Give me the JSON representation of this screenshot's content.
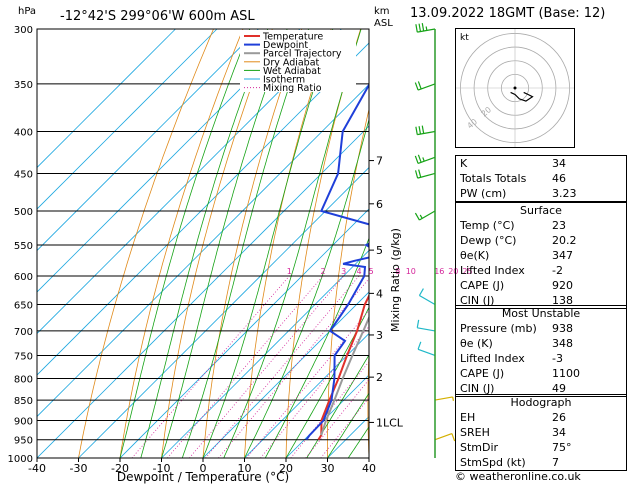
{
  "header": {
    "location": "-12°42'S  299°06'W  600m  ASL",
    "hpa_label": "hPa",
    "km_label": "km",
    "asl_label": "ASL",
    "datetime": "13.09.2022  18GMT  (Base: 12)"
  },
  "chart_data": {
    "type": "skew-t",
    "xlabel": "Dewpoint / Temperature (°C)",
    "right_axis_label": "Mixing Ratio (g/kg)",
    "x_ticks": [
      -40,
      -30,
      -20,
      -10,
      0,
      10,
      20,
      30,
      40
    ],
    "xlim": [
      -40,
      40
    ],
    "pressure_levels": [
      300,
      350,
      400,
      450,
      500,
      550,
      600,
      650,
      700,
      750,
      800,
      850,
      900,
      950,
      1000
    ],
    "ylim_hpa": [
      1000,
      300
    ],
    "height_km_ticks": [
      {
        "label": "7",
        "p": 434
      },
      {
        "label": "6",
        "p": 490
      },
      {
        "label": "5",
        "p": 558
      },
      {
        "label": "4",
        "p": 630
      },
      {
        "label": "3",
        "p": 708
      },
      {
        "label": "2",
        "p": 797
      },
      {
        "label": "1LCL",
        "p": 905
      }
    ],
    "mixing_ratio_labels": [
      "1",
      "2",
      "3",
      "4",
      "5",
      "8",
      "10",
      "16",
      "20",
      "25"
    ],
    "legend": [
      "Temperature",
      "Dewpoint",
      "Parcel Trajectory",
      "Dry Adiabat",
      "Wet Adiabat",
      "Isotherm",
      "Mixing Ratio"
    ],
    "colors": {
      "temperature": "#e0302a",
      "dewpoint": "#1f3fd9",
      "parcel": "#9a9a9a",
      "dry_adiabat": "#e08a1a",
      "wet_adiabat": "#16a316",
      "isotherm": "#1fa8e0",
      "mixing_ratio": "#d4259a"
    },
    "series": [
      {
        "name": "Temperature",
        "points": [
          [
            950,
            23.4
          ],
          [
            938,
            23
          ],
          [
            900,
            19.5
          ],
          [
            850,
            16.5
          ],
          [
            800,
            13.5
          ],
          [
            750,
            10
          ],
          [
            700,
            6.5
          ],
          [
            650,
            2
          ],
          [
            600,
            -1.5
          ],
          [
            550,
            -5
          ],
          [
            500,
            -10
          ],
          [
            450,
            -15.5
          ],
          [
            400,
            -22.5
          ],
          [
            350,
            -30
          ],
          [
            300,
            -38
          ]
        ]
      },
      {
        "name": "Dewpoint",
        "points": [
          [
            950,
            20.5
          ],
          [
            938,
            20.2
          ],
          [
            900,
            20
          ],
          [
            850,
            17
          ],
          [
            800,
            12.5
          ],
          [
            750,
            7
          ],
          [
            720,
            6
          ],
          [
            700,
            0
          ],
          [
            650,
            -2
          ],
          [
            600,
            -5
          ],
          [
            585,
            -7
          ],
          [
            580,
            -13
          ],
          [
            575,
            -11
          ],
          [
            565,
            -6
          ],
          [
            550,
            -12
          ],
          [
            530,
            -8
          ],
          [
            500,
            -31
          ],
          [
            450,
            -36
          ],
          [
            400,
            -45
          ],
          [
            350,
            -50
          ],
          [
            300,
            -55
          ]
        ]
      },
      {
        "name": "Parcel Trajectory",
        "points": [
          [
            938,
            23
          ],
          [
            900,
            20.6
          ],
          [
            850,
            17.7
          ],
          [
            800,
            14.5
          ],
          [
            750,
            11.3
          ],
          [
            700,
            8
          ],
          [
            650,
            4.4
          ],
          [
            600,
            0.6
          ],
          [
            550,
            -3.6
          ],
          [
            500,
            -8.3
          ],
          [
            450,
            -13.7
          ],
          [
            400,
            -19.8
          ],
          [
            350,
            -26.9
          ],
          [
            300,
            -35.5
          ]
        ]
      }
    ],
    "wind_barbs": [
      {
        "p": 300,
        "dir": 260,
        "kt": 35
      },
      {
        "p": 350,
        "dir": 250,
        "kt": 20
      },
      {
        "p": 400,
        "dir": 260,
        "kt": 30
      },
      {
        "p": 430,
        "dir": 250,
        "kt": 25
      },
      {
        "p": 450,
        "dir": 255,
        "kt": 20
      },
      {
        "p": 500,
        "dir": 240,
        "kt": 15
      },
      {
        "p": 650,
        "dir": 300,
        "kt": 10
      },
      {
        "p": 700,
        "dir": 280,
        "kt": 10
      },
      {
        "p": 750,
        "dir": 290,
        "kt": 10
      },
      {
        "p": 850,
        "dir": 80,
        "kt": 5
      },
      {
        "p": 950,
        "dir": 70,
        "kt": 10
      }
    ]
  },
  "hodograph": {
    "label": "kt",
    "ring_labels": [
      "20",
      "40"
    ],
    "trace_kt": [
      [
        4,
        -2
      ],
      [
        6,
        -3
      ],
      [
        8,
        -4
      ],
      [
        5,
        -6
      ],
      [
        2,
        -5
      ],
      [
        0,
        -3
      ],
      [
        -2,
        -2
      ]
    ]
  },
  "indices": [
    {
      "label": "K",
      "value": "34"
    },
    {
      "label": "Totals Totals",
      "value": "46"
    },
    {
      "label": "PW (cm)",
      "value": "3.23"
    }
  ],
  "surface": {
    "title": "Surface",
    "rows": [
      {
        "label": "Temp (°C)",
        "value": "23"
      },
      {
        "label": "Dewp (°C)",
        "value": "20.2"
      },
      {
        "label": "θe(K)",
        "value": "347"
      },
      {
        "label": "Lifted Index",
        "value": "-2"
      },
      {
        "label": "CAPE (J)",
        "value": "920"
      },
      {
        "label": "CIN (J)",
        "value": "138"
      }
    ]
  },
  "most_unstable": {
    "title": "Most Unstable",
    "rows": [
      {
        "label": "Pressure (mb)",
        "value": "938"
      },
      {
        "label": "θe (K)",
        "value": "348"
      },
      {
        "label": "Lifted Index",
        "value": "-3"
      },
      {
        "label": "CAPE (J)",
        "value": "1100"
      },
      {
        "label": "CIN (J)",
        "value": "49"
      }
    ]
  },
  "hodograph_table": {
    "title": "Hodograph",
    "rows": [
      {
        "label": "EH",
        "value": "26"
      },
      {
        "label": "SREH",
        "value": "34"
      },
      {
        "label": "StmDir",
        "value": "75°"
      },
      {
        "label": "StmSpd (kt)",
        "value": "7"
      }
    ]
  },
  "copyright": "© weatheronline.co.uk"
}
